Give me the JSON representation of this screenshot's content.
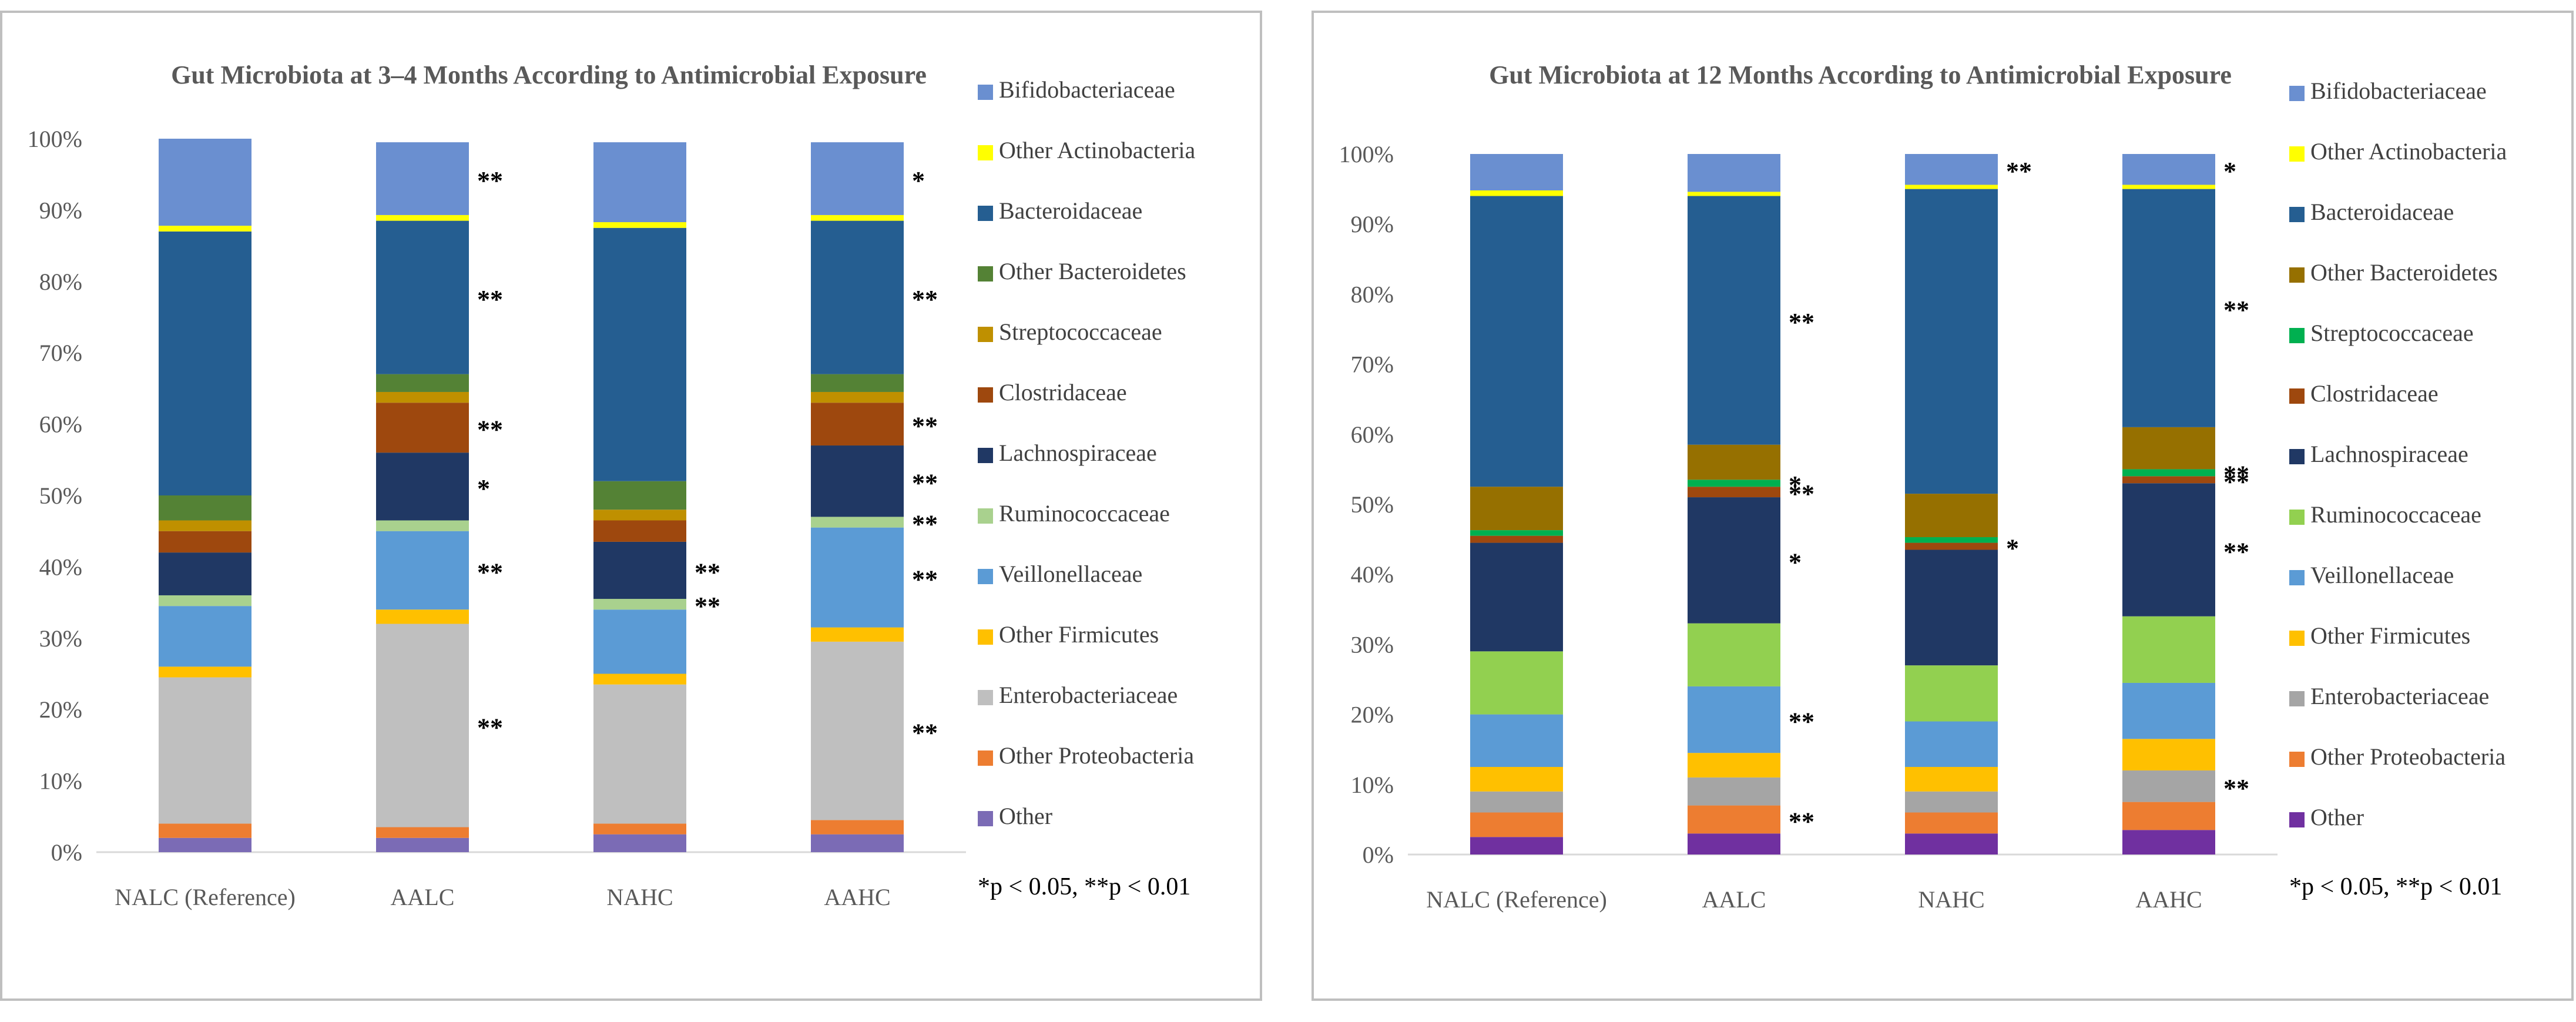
{
  "chart_data": [
    {
      "type": "bar",
      "stacked": true,
      "title": "Gut Microbiota at 3–4 Months According to Antimicrobial Exposure",
      "xlabel": "",
      "ylabel": "",
      "ylim": [
        0,
        100
      ],
      "y_ticks": [
        "0%",
        "10%",
        "20%",
        "30%",
        "40%",
        "50%",
        "60%",
        "70%",
        "80%",
        "90%",
        "100%"
      ],
      "categories": [
        "NALC (Reference)",
        "AALC",
        "NAHC",
        "AAHC"
      ],
      "series": [
        {
          "name": "Other",
          "color": "#7b6bb5",
          "values": [
            2,
            2,
            2.5,
            2.5
          ]
        },
        {
          "name": "Other Proteobacteria",
          "color": "#ed7d31",
          "values": [
            2,
            1.5,
            1.5,
            2
          ]
        },
        {
          "name": "Enterobacteriaceae",
          "color": "#bfbfbf",
          "values": [
            20.5,
            28.5,
            19.5,
            25
          ]
        },
        {
          "name": "Other Firmicutes",
          "color": "#ffc000",
          "values": [
            1.5,
            2,
            1.5,
            2
          ]
        },
        {
          "name": "Veillonellaceae",
          "color": "#5b9bd5",
          "values": [
            8.5,
            11,
            9,
            14
          ]
        },
        {
          "name": "Ruminococcaceae",
          "color": "#a9d18e",
          "values": [
            1.5,
            1.5,
            1.5,
            1.5
          ]
        },
        {
          "name": "Lachnospiraceae",
          "color": "#203864",
          "values": [
            6,
            9.5,
            8,
            10
          ]
        },
        {
          "name": "Clostridaceae",
          "color": "#9e480e",
          "values": [
            3,
            7,
            3,
            6
          ]
        },
        {
          "name": "Streptococcaceae",
          "color": "#bf9000",
          "values": [
            1.5,
            1.5,
            1.5,
            1.5
          ]
        },
        {
          "name": "Other Bacteroidetes",
          "color": "#548235",
          "values": [
            3.5,
            2.5,
            4,
            2.5
          ]
        },
        {
          "name": "Bacteroidaceae",
          "color": "#255e91",
          "values": [
            37,
            21.5,
            35.5,
            21.5
          ]
        },
        {
          "name": "Other Actinobacteria",
          "color": "#ffff00",
          "values": [
            0.8,
            0.8,
            0.8,
            0.8
          ]
        },
        {
          "name": "Bifidobacteriaceae",
          "color": "#6a8fd0",
          "values": [
            12.2,
            10.2,
            11.2,
            10.2
          ]
        }
      ],
      "legend": [
        "Bifidobacteriaceae",
        "Other Actinobacteria",
        "Bacteroidaceae",
        "Other Bacteroidetes",
        "Streptococcaceae",
        "Clostridaceae",
        "Lachnospiraceae",
        "Ruminococcaceae",
        "Veillonellaceae",
        "Other Firmicutes",
        "Enterobacteriaceae",
        "Other Proteobacteria",
        "Other"
      ],
      "legend_colors": [
        "#6a8fd0",
        "#ffff00",
        "#255e91",
        "#548235",
        "#bf9000",
        "#9e480e",
        "#203864",
        "#a9d18e",
        "#5b9bd5",
        "#ffc000",
        "#bfbfbf",
        "#ed7d31",
        "#7b6bb5"
      ],
      "annotations": [
        {
          "category": "AALC",
          "series": "Bifidobacteriaceae",
          "label": "**"
        },
        {
          "category": "AALC",
          "series": "Bacteroidaceae",
          "label": "**"
        },
        {
          "category": "AALC",
          "series": "Clostridaceae",
          "label": "**"
        },
        {
          "category": "AALC",
          "series": "Lachnospiraceae",
          "label": "*"
        },
        {
          "category": "AALC",
          "series": "Veillonellaceae",
          "label": "**"
        },
        {
          "category": "AALC",
          "series": "Enterobacteriaceae",
          "label": "**"
        },
        {
          "category": "NAHC",
          "series": "Lachnospiraceae",
          "label": "**"
        },
        {
          "category": "NAHC",
          "series": "Ruminococcaceae",
          "label": "**"
        },
        {
          "category": "AAHC",
          "series": "Bifidobacteriaceae",
          "label": "*"
        },
        {
          "category": "AAHC",
          "series": "Bacteroidaceae",
          "label": "**"
        },
        {
          "category": "AAHC",
          "series": "Clostridaceae",
          "label": "**"
        },
        {
          "category": "AAHC",
          "series": "Lachnospiraceae",
          "label": "**"
        },
        {
          "category": "AAHC",
          "series": "Ruminococcaceae",
          "label": "**"
        },
        {
          "category": "AAHC",
          "series": "Veillonellaceae",
          "label": "**"
        },
        {
          "category": "AAHC",
          "series": "Enterobacteriaceae",
          "label": "**"
        }
      ],
      "note": "*p < 0.05, **p < 0.01"
    },
    {
      "type": "bar",
      "stacked": true,
      "title": "Gut Microbiota at 12 Months According to Antimicrobial Exposure",
      "xlabel": "",
      "ylabel": "",
      "ylim": [
        0,
        100
      ],
      "y_ticks": [
        "0%",
        "10%",
        "20%",
        "30%",
        "40%",
        "50%",
        "60%",
        "70%",
        "80%",
        "90%",
        "100%"
      ],
      "categories": [
        "NALC (Reference)",
        "AALC",
        "NAHC",
        "AAHC"
      ],
      "series": [
        {
          "name": "Other",
          "color": "#7030a0",
          "values": [
            2.5,
            3,
            3,
            3.5
          ]
        },
        {
          "name": "Other Proteobacteria",
          "color": "#ed7d31",
          "values": [
            3.5,
            4,
            3,
            4
          ]
        },
        {
          "name": "Enterobacteriaceae",
          "color": "#a5a5a5",
          "values": [
            3,
            4,
            3,
            4.5
          ]
        },
        {
          "name": "Other Firmicutes",
          "color": "#ffc000",
          "values": [
            3.5,
            3.5,
            3.5,
            4.5
          ]
        },
        {
          "name": "Veillonellaceae",
          "color": "#5b9bd5",
          "values": [
            7.5,
            9.5,
            6.5,
            8
          ]
        },
        {
          "name": "Ruminococcaceae",
          "color": "#92d050",
          "values": [
            9,
            9,
            8,
            9.5
          ]
        },
        {
          "name": "Lachnospiraceae",
          "color": "#203864",
          "values": [
            15.5,
            18,
            16.5,
            19
          ]
        },
        {
          "name": "Clostridaceae",
          "color": "#9e480e",
          "values": [
            1,
            1.5,
            1,
            1
          ]
        },
        {
          "name": "Streptococcaceae",
          "color": "#00b050",
          "values": [
            0.8,
            1,
            0.8,
            1
          ]
        },
        {
          "name": "Other Bacteroidetes",
          "color": "#967000",
          "values": [
            6.2,
            5,
            6.2,
            6
          ]
        },
        {
          "name": "Bacteroidaceae",
          "color": "#255e91",
          "values": [
            41.5,
            35.5,
            43.5,
            34
          ]
        },
        {
          "name": "Other Actinobacteria",
          "color": "#ffff00",
          "values": [
            0.8,
            0.6,
            0.6,
            0.6
          ]
        },
        {
          "name": "Bifidobacteriaceae",
          "color": "#6a8fd0",
          "values": [
            5.2,
            5.4,
            4.4,
            4.4
          ]
        }
      ],
      "legend": [
        "Bifidobacteriaceae",
        "Other Actinobacteria",
        "Bacteroidaceae",
        "Other Bacteroidetes",
        "Streptococcaceae",
        "Clostridaceae",
        "Lachnospiraceae",
        "Ruminococcaceae",
        "Veillonellaceae",
        "Other Firmicutes",
        "Enterobacteriaceae",
        "Other Proteobacteria",
        "Other"
      ],
      "legend_colors": [
        "#6a8fd0",
        "#ffff00",
        "#255e91",
        "#967000",
        "#00b050",
        "#9e480e",
        "#203864",
        "#92d050",
        "#5b9bd5",
        "#ffc000",
        "#a5a5a5",
        "#ed7d31",
        "#7030a0"
      ],
      "annotations": [
        {
          "category": "AALC",
          "series": "Bacteroidaceae",
          "label": "**"
        },
        {
          "category": "AALC",
          "series": "Streptococcaceae",
          "label": "*"
        },
        {
          "category": "AALC",
          "series": "Clostridaceae",
          "label": "**"
        },
        {
          "category": "AALC",
          "series": "Lachnospiraceae",
          "label": "*"
        },
        {
          "category": "AALC",
          "series": "Veillonellaceae",
          "label": "**"
        },
        {
          "category": "AALC",
          "series": "Other Proteobacteria",
          "label": "**"
        },
        {
          "category": "NAHC",
          "series": "Bifidobacteriaceae",
          "label": "**"
        },
        {
          "category": "NAHC",
          "series": "Clostridaceae",
          "label": "*"
        },
        {
          "category": "AAHC",
          "series": "Bifidobacteriaceae",
          "label": "*"
        },
        {
          "category": "AAHC",
          "series": "Bacteroidaceae",
          "label": "**"
        },
        {
          "category": "AAHC",
          "series": "Streptococcaceae",
          "label": "**"
        },
        {
          "category": "AAHC",
          "series": "Clostridaceae",
          "label": "**"
        },
        {
          "category": "AAHC",
          "series": "Lachnospiraceae",
          "label": "**"
        },
        {
          "category": "AAHC",
          "series": "Enterobacteriaceae",
          "label": "**"
        }
      ],
      "note": "*p < 0.05, **p < 0.01"
    }
  ]
}
